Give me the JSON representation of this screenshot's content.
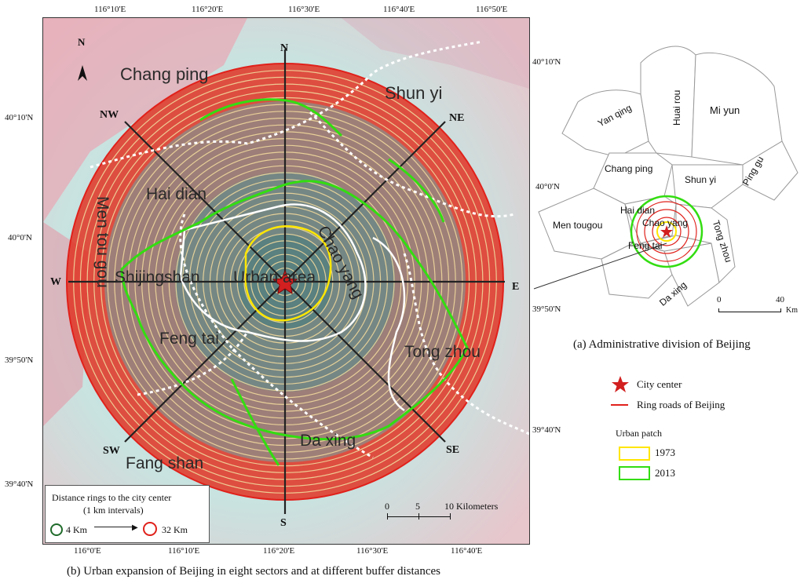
{
  "top_longitudes": [
    "116°10'E",
    "116°20'E",
    "116°30'E",
    "116°40'E",
    "116°50'E"
  ],
  "bottom_longitudes": [
    "116°0'E",
    "116°10'E",
    "116°20'E",
    "116°30'E",
    "116°40'E"
  ],
  "left_latitudes": [
    "40°10'N",
    "40°0'N",
    "39°50'N",
    "39°40'N"
  ],
  "right_latitudes": [
    "40°10'N",
    "40°0'N",
    "39°50'N",
    "39°40'N"
  ],
  "north_arrow": "N",
  "directions": {
    "n": "N",
    "s": "S",
    "e": "E",
    "w": "W",
    "ne": "NE",
    "nw": "NW",
    "se": "SE",
    "sw": "SW"
  },
  "districts": {
    "chang_ping": "Chang ping",
    "shun_yi": "Shun yi",
    "hai_dian": "Hai dian",
    "chao_yang": "Chao yang",
    "men_tou_gou": "Men tou gou",
    "shijingshan": "Shijingshan",
    "urban_area": "Urban area",
    "feng_tai": "Feng tai",
    "tong_zhou": "Tong zhou",
    "da_xing": "Da xing",
    "fang_shan": "Fang shan"
  },
  "ring_legend": {
    "title": "Distance rings to the city center",
    "subtitle": "(1 km intervals)",
    "inner": "4 Km",
    "outer": "32 Km"
  },
  "scale_bar": {
    "v0": "0",
    "v5": "5",
    "v10": "10 Kilometers"
  },
  "admin_labels": {
    "yan_qing": "Yan qing",
    "huai_rou": "Huai rou",
    "mi_yun": "Mi yun",
    "chang_ping": "Chang ping",
    "shun_yi": "Shun yi",
    "ping_gu": "Ping gu",
    "men_tougou": "Men tougou",
    "hai_dian": "Hai dian",
    "chao_yang": "Chao yang",
    "feng_tai": "Feng tai",
    "tong_zhou": "Tong zhou",
    "da_xing": "Da xing"
  },
  "admin_scale": {
    "v0": "0",
    "v40": "40",
    "unit": "Km"
  },
  "caption_a": "(a) Administrative division of Beijing",
  "caption_b": "(b) Urban expansion of Beijing in eight sectors and at different buffer distances",
  "legend": {
    "city_center": "City center",
    "ring_roads": "Ring roads of Beijing",
    "urban_patch": "Urban patch",
    "y1973": "1973",
    "y2013": "2013"
  },
  "colors": {
    "ring_outer": "#e0211b",
    "ring_line": "#f2d89a",
    "patch_1973": "#ffe600",
    "patch_2013": "#33dd11",
    "center_star": "#d21f1f"
  }
}
